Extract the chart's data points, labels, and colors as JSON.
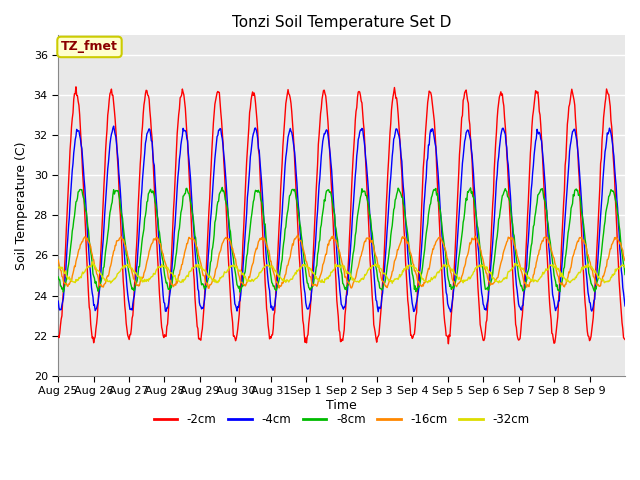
{
  "title": "Tonzi Soil Temperature Set D",
  "xlabel": "Time",
  "ylabel": "Soil Temperature (C)",
  "ylim": [
    20,
    37
  ],
  "yticks": [
    20,
    22,
    24,
    26,
    28,
    30,
    32,
    34,
    36
  ],
  "x_labels": [
    "Aug 25",
    "Aug 26",
    "Aug 27",
    "Aug 28",
    "Aug 29",
    "Aug 30",
    "Aug 31",
    "Sep 1",
    "Sep 2",
    "Sep 3",
    "Sep 4",
    "Sep 5",
    "Sep 6",
    "Sep 7",
    "Sep 8",
    "Sep 9"
  ],
  "annotation": "TZ_fmet",
  "annotation_color": "#8B0000",
  "annotation_bg": "#FFFFCC",
  "annotation_edge": "#CCCC00",
  "series_colors": [
    "#FF0000",
    "#0000FF",
    "#00BB00",
    "#FF8800",
    "#DDDD00"
  ],
  "series_labels": [
    "-2cm",
    "-4cm",
    "-8cm",
    "-16cm",
    "-32cm"
  ],
  "plot_bg": "#E8E8E8",
  "fig_bg": "#FFFFFF",
  "grid_color": "#FFFFFF",
  "n_days": 16,
  "pts_per_day": 48,
  "series_2cm": {
    "mean": 28.0,
    "amp": 6.2,
    "phase": 1.5708,
    "lag": 0.0
  },
  "series_4cm": {
    "mean": 27.8,
    "amp": 4.5,
    "phase": 1.5708,
    "lag": 0.35
  },
  "series_8cm": {
    "mean": 26.8,
    "amp": 2.5,
    "phase": 1.5708,
    "lag": 0.8
  },
  "series_16cm": {
    "mean": 25.7,
    "amp": 1.2,
    "phase": 1.5708,
    "lag": 1.6
  },
  "series_32cm": {
    "mean": 25.1,
    "amp": 0.4,
    "phase": 1.5708,
    "lag": 2.8
  }
}
